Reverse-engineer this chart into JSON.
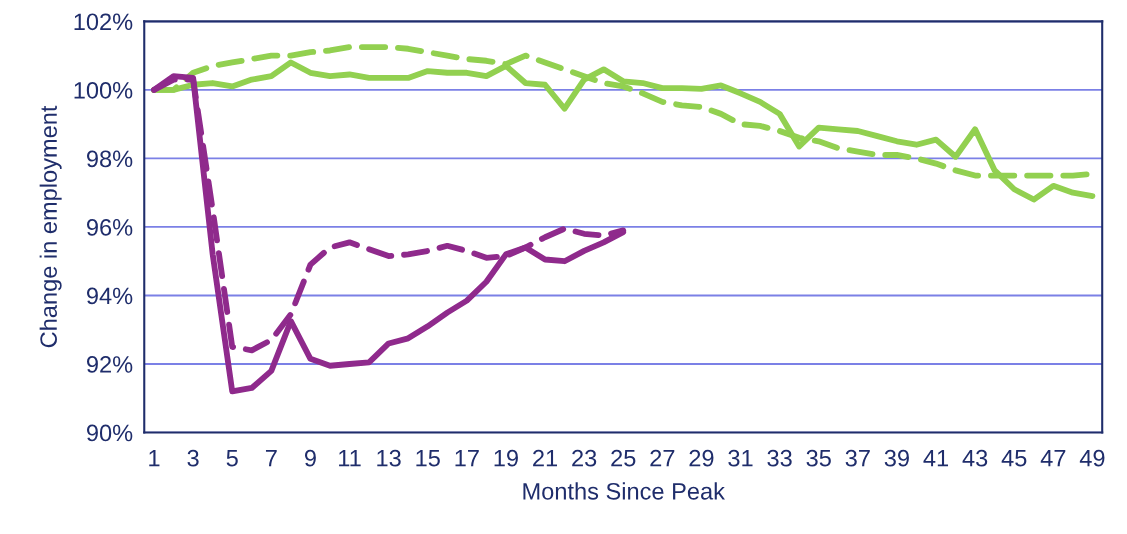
{
  "chart_data": {
    "type": "line",
    "xlabel": "Months Since Peak",
    "ylabel": "Change in employment",
    "categories": [
      "1",
      null,
      "3",
      null,
      "5",
      null,
      "7",
      null,
      "9",
      null,
      "11",
      null,
      "13",
      null,
      "15",
      null,
      "17",
      null,
      "19",
      null,
      "21",
      null,
      "23",
      null,
      "25",
      null,
      "27",
      null,
      "29",
      null,
      "31",
      null,
      "33",
      null,
      "35",
      null,
      "37",
      null,
      "39",
      null,
      "41",
      null,
      "43",
      null,
      "45",
      null,
      "47",
      null,
      "49"
    ],
    "ylim": [
      90,
      102
    ],
    "yticks": [
      {
        "value": 90,
        "label": "90%"
      },
      {
        "value": 92,
        "label": "92%"
      },
      {
        "value": 94,
        "label": "94%"
      },
      {
        "value": 96,
        "label": "96%"
      },
      {
        "value": 98,
        "label": "98%"
      },
      {
        "value": 100,
        "label": "100%"
      },
      {
        "value": 102,
        "label": "102%"
      }
    ],
    "grid": "y",
    "marker": "none",
    "series": [
      {
        "color": "#92d050",
        "line_style": "solid",
        "values": [
          100.0,
          100.0,
          100.15,
          100.2,
          100.1,
          100.3,
          100.4,
          100.8,
          100.5,
          100.4,
          100.45,
          100.35,
          100.35,
          100.35,
          100.55,
          100.5,
          100.5,
          100.4,
          100.7,
          100.2,
          100.15,
          99.45,
          100.3,
          100.6,
          100.25,
          100.2,
          100.05,
          100.05,
          100.03,
          100.13,
          99.9,
          99.65,
          99.3,
          98.35,
          98.9,
          98.85,
          98.8,
          98.65,
          98.5,
          98.4,
          98.55,
          98.05,
          98.85,
          97.65,
          97.1,
          96.8,
          97.2,
          97.0,
          96.9
        ]
      },
      {
        "color": "#92d050",
        "line_style": "dashed",
        "values": [
          100.0,
          100.0,
          100.5,
          100.7,
          100.8,
          100.9,
          101.0,
          101.0,
          101.1,
          101.15,
          101.25,
          101.25,
          101.25,
          101.2,
          101.1,
          101.0,
          100.9,
          100.85,
          100.75,
          101.0,
          100.8,
          100.6,
          100.4,
          100.2,
          100.1,
          99.9,
          99.65,
          99.55,
          99.5,
          99.3,
          99.0,
          98.95,
          98.8,
          98.6,
          98.5,
          98.3,
          98.2,
          98.1,
          98.1,
          98.0,
          97.85,
          97.65,
          97.5,
          97.5,
          97.5,
          97.5,
          97.5,
          97.5,
          97.55
        ]
      },
      {
        "color": "#8f2a8c",
        "line_style": "solid",
        "values": [
          100.0,
          100.4,
          100.35,
          95.2,
          91.2,
          91.3,
          91.8,
          93.25,
          92.15,
          91.95,
          92.0,
          92.05,
          92.6,
          92.75,
          93.1,
          93.5,
          93.85,
          94.4,
          95.2,
          95.4,
          95.05,
          95.0,
          95.3,
          95.55,
          95.85,
          null,
          null,
          null,
          null,
          null,
          null,
          null,
          null,
          null,
          null,
          null,
          null,
          null,
          null,
          null,
          null,
          null,
          null,
          null,
          null,
          null,
          null,
          null,
          null
        ]
      },
      {
        "color": "#8f2a8c",
        "line_style": "dashed",
        "values": [
          100.0,
          100.3,
          100.3,
          96.5,
          92.5,
          92.4,
          92.7,
          93.45,
          94.9,
          95.4,
          95.55,
          95.35,
          95.15,
          95.2,
          95.3,
          95.45,
          95.3,
          95.1,
          95.15,
          95.4,
          95.7,
          95.95,
          95.8,
          95.75,
          95.9,
          null,
          null,
          null,
          null,
          null,
          null,
          null,
          null,
          null,
          null,
          null,
          null,
          null,
          null,
          null,
          null,
          null,
          null,
          null,
          null,
          null,
          null,
          null,
          null
        ]
      }
    ]
  }
}
